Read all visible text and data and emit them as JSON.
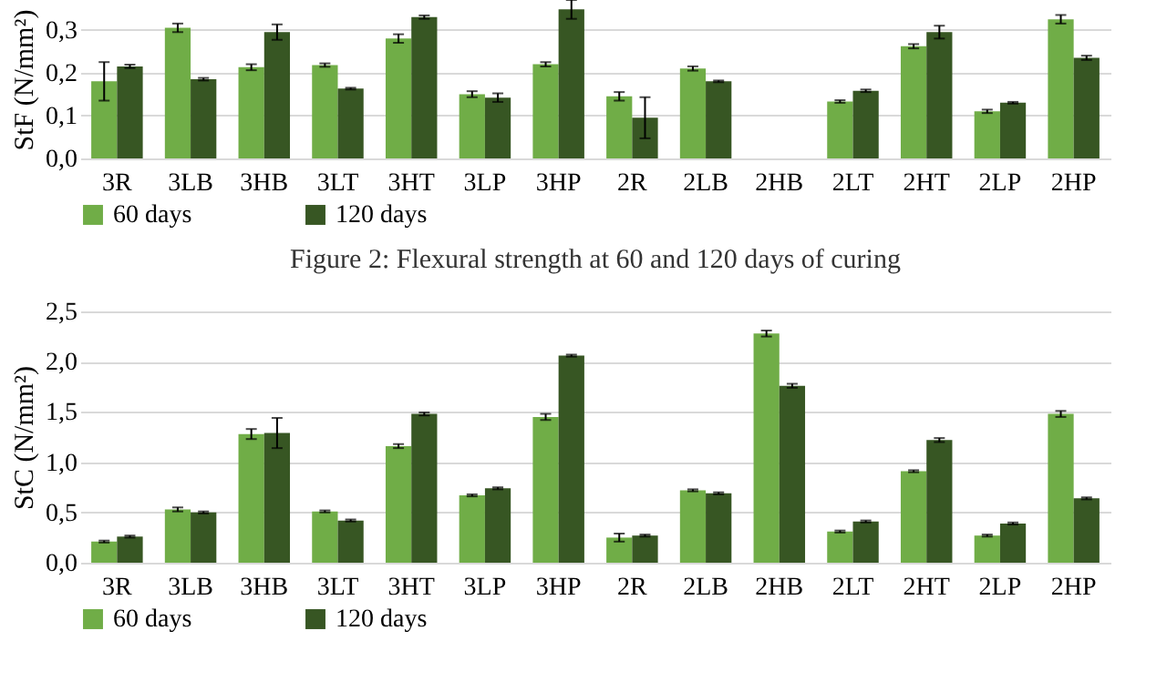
{
  "chart_data": [
    {
      "type": "bar",
      "ylabel": "StF (N/mm²)",
      "categories": [
        "3R",
        "3LB",
        "3HB",
        "3LT",
        "3HT",
        "3LP",
        "3HP",
        "2R",
        "2LB",
        "2HB",
        "2LT",
        "2HT",
        "2LP",
        "2HP"
      ],
      "series": [
        {
          "name": "60 days",
          "color": "#70ad47",
          "values": [
            0.18,
            0.305,
            0.213,
            0.218,
            0.28,
            0.15,
            0.22,
            0.145,
            0.21,
            null,
            0.133,
            0.262,
            0.11,
            0.325
          ],
          "errors": [
            0.045,
            0.01,
            0.007,
            0.004,
            0.01,
            0.007,
            0.005,
            0.01,
            0.005,
            null,
            0.003,
            0.005,
            0.004,
            0.01
          ]
        },
        {
          "name": "120 days",
          "color": "#375623",
          "values": [
            0.215,
            0.185,
            0.295,
            0.163,
            0.33,
            0.142,
            0.348,
            0.095,
            0.18,
            null,
            0.158,
            0.295,
            0.13,
            0.235
          ],
          "errors": [
            0.004,
            0.003,
            0.018,
            0.002,
            0.004,
            0.01,
            0.022,
            0.048,
            0.002,
            null,
            0.003,
            0.015,
            0.002,
            0.005
          ]
        }
      ],
      "ylim": [
        0,
        0.37
      ],
      "yticks": [
        {
          "value": 0,
          "label": "0,0"
        },
        {
          "value": 0.1,
          "label": "0,1"
        },
        {
          "value": 0.2,
          "label": "0,2"
        },
        {
          "value": 0.3,
          "label": "0,3"
        }
      ],
      "grid": "y",
      "legend": "bottom",
      "annotations": [
        "Figure 2: Flexural strength at 60 and 120 days of curing"
      ]
    },
    {
      "type": "bar",
      "ylabel": "StC (N/mm²)",
      "categories": [
        "3R",
        "3LB",
        "3HB",
        "3LT",
        "3HT",
        "3LP",
        "3HP",
        "2R",
        "2LB",
        "2HB",
        "2LT",
        "2HT",
        "2LP",
        "2HP"
      ],
      "series": [
        {
          "name": "60 days",
          "color": "#70ad47",
          "values": [
            0.21,
            0.53,
            1.28,
            0.51,
            1.16,
            0.67,
            1.45,
            0.25,
            0.72,
            2.28,
            0.31,
            0.91,
            0.27,
            1.48
          ],
          "errors": [
            0.01,
            0.02,
            0.05,
            0.01,
            0.02,
            0.01,
            0.03,
            0.04,
            0.01,
            0.03,
            0.01,
            0.01,
            0.01,
            0.03
          ]
        },
        {
          "name": "120 days",
          "color": "#375623",
          "values": [
            0.26,
            0.5,
            1.29,
            0.42,
            1.48,
            0.74,
            2.06,
            0.27,
            0.69,
            1.76,
            0.41,
            1.22,
            0.39,
            0.64
          ],
          "errors": [
            0.01,
            0.01,
            0.15,
            0.01,
            0.015,
            0.01,
            0.01,
            0.01,
            0.01,
            0.02,
            0.01,
            0.02,
            0.01,
            0.01
          ]
        }
      ],
      "ylim": [
        0,
        2.5
      ],
      "yticks": [
        {
          "value": 0,
          "label": "0,0"
        },
        {
          "value": 0.5,
          "label": "0,5"
        },
        {
          "value": 1,
          "label": "1,0"
        },
        {
          "value": 1.5,
          "label": "1,5"
        },
        {
          "value": 2,
          "label": "2,0"
        },
        {
          "value": 2.5,
          "label": "2,5"
        }
      ],
      "grid": "y",
      "legend": "bottom"
    }
  ]
}
